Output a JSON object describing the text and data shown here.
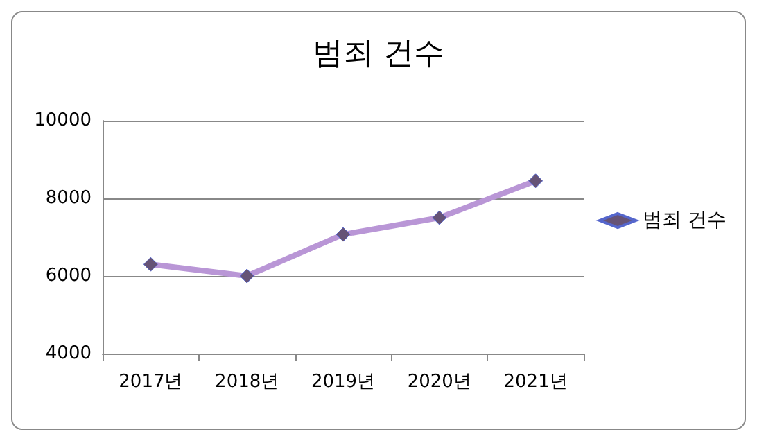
{
  "chart_data": {
    "type": "line",
    "title": "범죄 건수",
    "categories": [
      "2017년",
      "2018년",
      "2019년",
      "2020년",
      "2021년"
    ],
    "series": [
      {
        "name": "범죄 건수",
        "color": "#b996d6",
        "values": [
          6300,
          6000,
          7070,
          7500,
          8450
        ]
      }
    ],
    "ylim": [
      4000,
      10000
    ],
    "yticks": [
      4000,
      6000,
      8000,
      10000
    ],
    "grid": "y",
    "legend": "right",
    "marker": "diamond",
    "line_style": "solid"
  }
}
